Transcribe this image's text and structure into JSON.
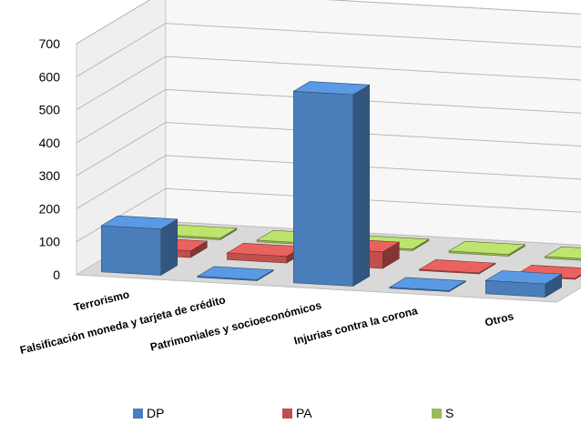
{
  "chart_data": {
    "type": "bar",
    "style": "3d-clustered-depth",
    "categories": [
      "Terrorismo",
      "Falsificación moneda y tarjeta de crédito",
      "Patrimoniales y socioeconómicos",
      "Injurias contra la corona",
      "Otros"
    ],
    "series": [
      {
        "name": "DP",
        "values": [
          140,
          0,
          580,
          0,
          40
        ]
      },
      {
        "name": "PA",
        "values": [
          20,
          20,
          50,
          0,
          0
        ]
      },
      {
        "name": "S",
        "values": [
          5,
          5,
          5,
          5,
          5
        ]
      }
    ],
    "ylim": [
      0,
      700
    ],
    "yticks": [
      "0",
      "100",
      "200",
      "300",
      "400",
      "500",
      "600",
      "700"
    ],
    "depth_labels": [
      "S",
      "PA",
      "DP"
    ],
    "grid": true,
    "legend_position": "bottom",
    "colors": {
      "DP": "#4a7ebb",
      "PA": "#c0504d",
      "S": "#9bbb59"
    }
  },
  "legend": {
    "items": [
      {
        "label": "DP",
        "color": "#4a7ebb"
      },
      {
        "label": "PA",
        "color": "#c0504d"
      },
      {
        "label": "S",
        "color": "#9bbb59"
      }
    ]
  }
}
